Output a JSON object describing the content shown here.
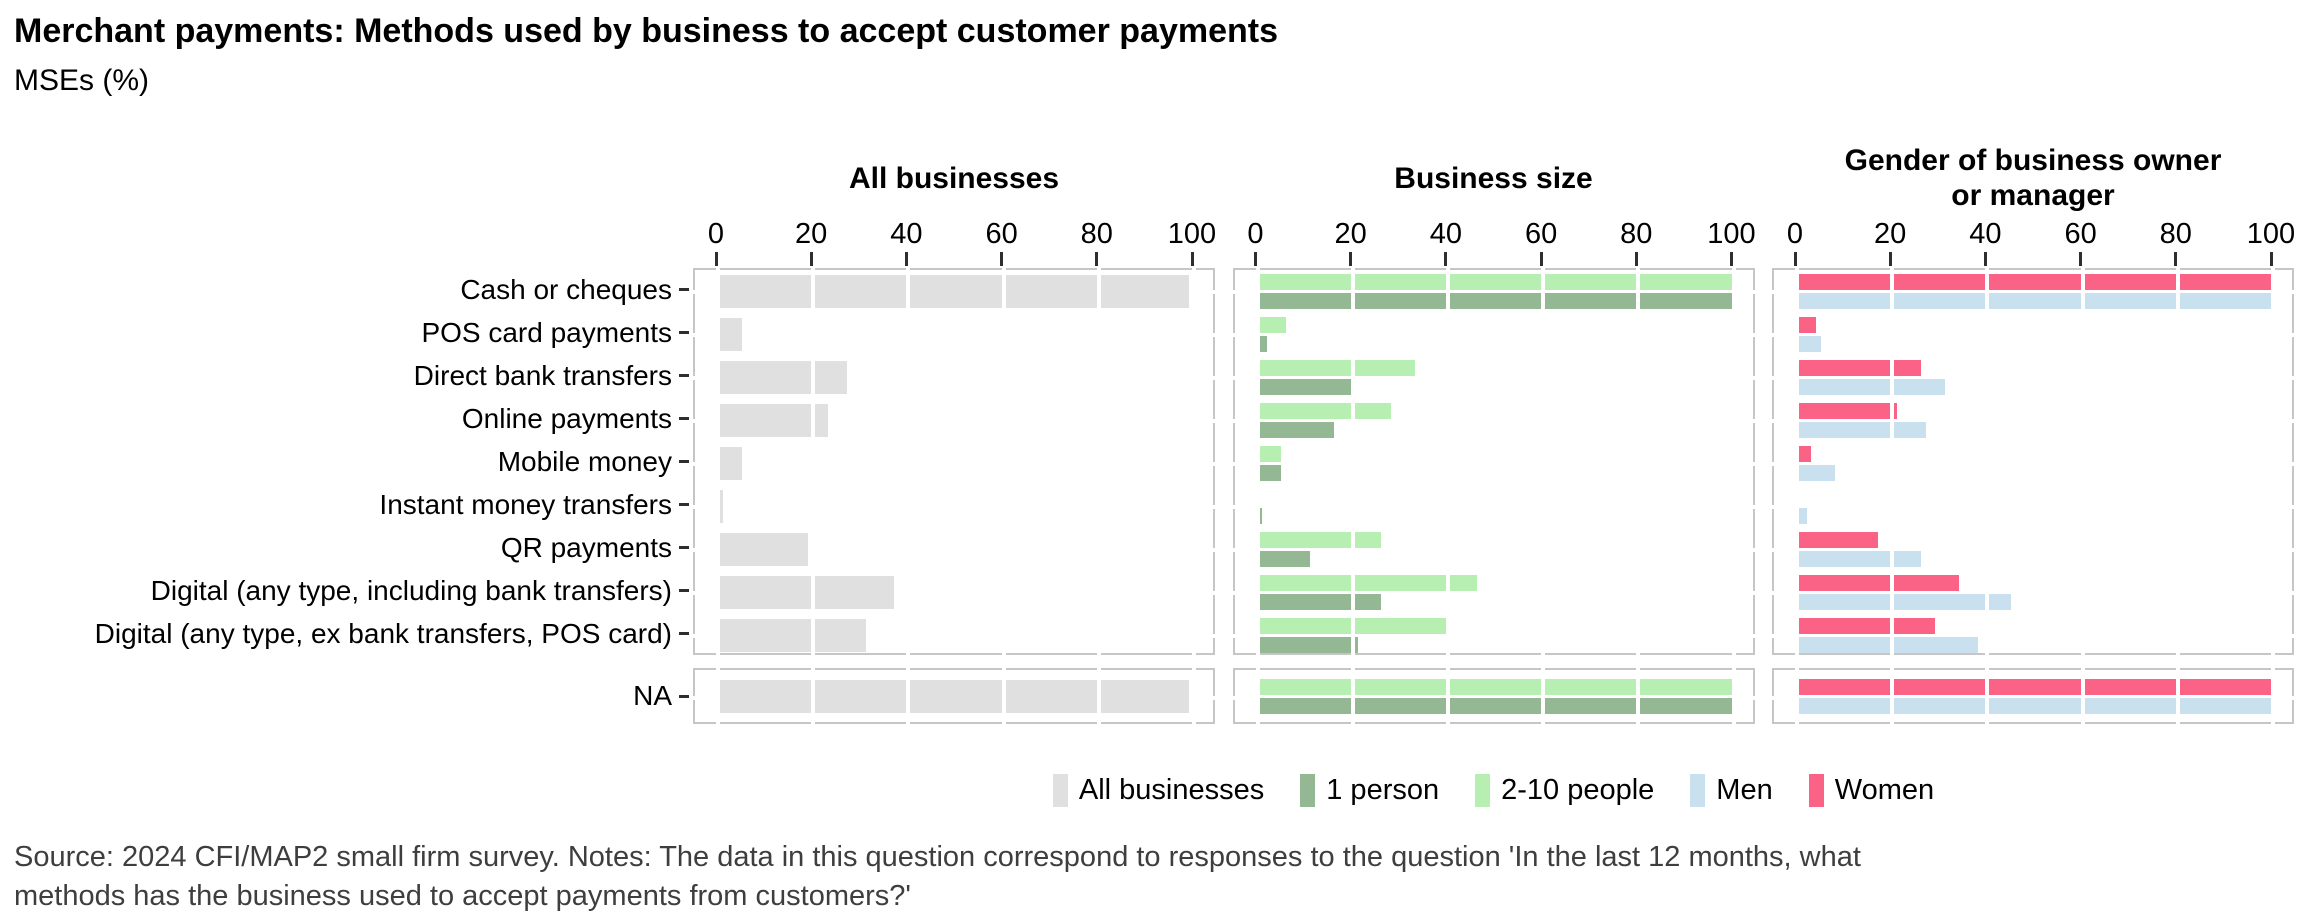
{
  "title": "Merchant payments: Methods used by business to accept customer payments",
  "subtitle": "MSEs (%)",
  "source_note": "Source: 2024 CFI/MAP2 small firm survey. Notes: The data in this question correspond to responses to the question 'In the last 12 months, what\nmethods has the business used to accept payments from customers?'",
  "colors": {
    "all_businesses": "#e0e0e0",
    "one_person": "#94b894",
    "two_to_ten_people": "#b7eeb2",
    "men": "#c9e1ef",
    "women": "#fa6386",
    "panel_border": "#c6c6c6",
    "tick": "#2e2e2e",
    "note_text": "#3e3e3e"
  },
  "chart_data": {
    "type": "bar",
    "orientation": "horizontal",
    "title": "Merchant payments: Methods used by business to accept customer payments",
    "subtitle": "MSEs (%)",
    "x_axis": {
      "min": 0,
      "max": 100,
      "ticks": [
        0,
        20,
        40,
        60,
        80,
        100
      ],
      "grid": "white gridlines drawn over bars and panel border"
    },
    "categories": [
      "Cash or cheques",
      "POS card payments",
      "Direct bank transfers",
      "Online payments",
      "Mobile money",
      "Instant money transfers",
      "QR payments",
      "Digital (any type, including bank transfers)",
      "Digital (any type, ex bank transfers, POS card)"
    ],
    "na_category": "NA",
    "panels": [
      {
        "title_lines": [
          "All businesses"
        ],
        "series": [
          {
            "name": "All businesses",
            "color": "#e0e0e0",
            "values": [
              99,
              5,
              27,
              23,
              5,
              1,
              19,
              37,
              31
            ],
            "na_value": 99
          }
        ]
      },
      {
        "title_lines": [
          "Business size"
        ],
        "series": [
          {
            "name": "2-10 people",
            "color": "#b7eeb2",
            "values": [
              100,
              6,
              33,
              28,
              5,
              0,
              26,
              46,
              40
            ],
            "na_value": 100
          },
          {
            "name": "1 person",
            "color": "#94b894",
            "values": [
              100,
              2,
              20,
              16,
              5,
              1,
              11,
              26,
              21
            ],
            "na_value": 100
          }
        ]
      },
      {
        "title_lines": [
          "Gender of business owner",
          "or manager"
        ],
        "series": [
          {
            "name": "Women",
            "color": "#fa6386",
            "values": [
              100,
              4,
              26,
              21,
              3,
              0,
              17,
              34,
              29
            ],
            "na_value": 100
          },
          {
            "name": "Men",
            "color": "#c9e1ef",
            "values": [
              100,
              5,
              31,
              27,
              8,
              2,
              26,
              45,
              38
            ],
            "na_value": 100
          }
        ]
      }
    ],
    "legend": [
      {
        "label": "All businesses",
        "color": "#e0e0e0"
      },
      {
        "label": "1 person",
        "color": "#94b894"
      },
      {
        "label": "2-10 people",
        "color": "#b7eeb2"
      },
      {
        "label": "Men",
        "color": "#c9e1ef"
      },
      {
        "label": "Women",
        "color": "#fa6386"
      }
    ],
    "legend_position": "bottom-center"
  }
}
